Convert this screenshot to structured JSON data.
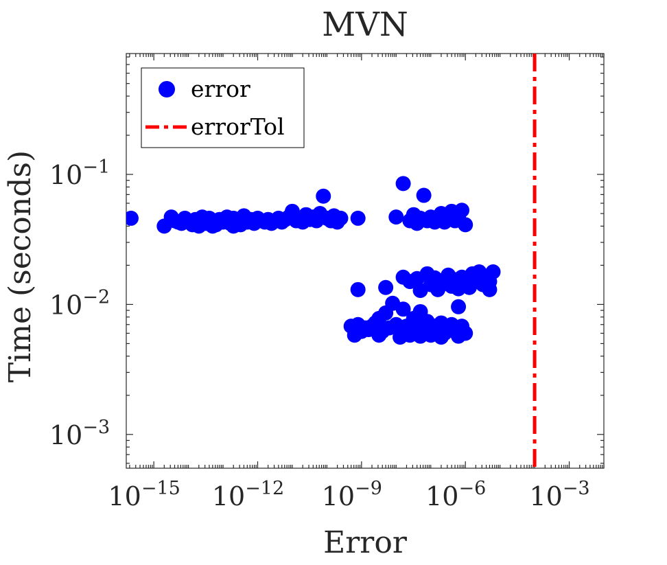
{
  "chart_data": {
    "type": "scatter",
    "title": "MVN",
    "xlabel": "Error",
    "ylabel": "Time (seconds)",
    "x_scale": "log",
    "y_scale": "log",
    "xlim": [
      1.6e-16,
      0.01
    ],
    "ylim": [
      0.00055,
      0.85
    ],
    "x_ticks": [
      {
        "base": "10",
        "exp": "−15",
        "value": 1e-15
      },
      {
        "base": "10",
        "exp": "−12",
        "value": 1e-12
      },
      {
        "base": "10",
        "exp": "−9",
        "value": 1e-09
      },
      {
        "base": "10",
        "exp": "−6",
        "value": 1e-06
      },
      {
        "base": "10",
        "exp": "−3",
        "value": 0.001
      }
    ],
    "y_ticks": [
      {
        "base": "10",
        "exp": "−3",
        "value": 0.001
      },
      {
        "base": "10",
        "exp": "−2",
        "value": 0.01
      },
      {
        "base": "10",
        "exp": "−1",
        "value": 0.1
      }
    ],
    "grid": false,
    "legend_position": "top-left",
    "series": [
      {
        "name": "error",
        "color": "#0000ff",
        "marker": "filled-circle",
        "points": [
          [
            2.2e-16,
            0.046
          ],
          [
            2e-15,
            0.04
          ],
          [
            3.2e-15,
            0.047
          ],
          [
            4e-15,
            0.044
          ],
          [
            5e-15,
            0.043
          ],
          [
            6.3e-15,
            0.042
          ],
          [
            7.9e-15,
            0.046
          ],
          [
            1e-14,
            0.044
          ],
          [
            1.3e-14,
            0.041
          ],
          [
            1.6e-14,
            0.045
          ],
          [
            2e-14,
            0.043
          ],
          [
            2.5e-14,
            0.047
          ],
          [
            3.2e-14,
            0.042
          ],
          [
            4e-14,
            0.046
          ],
          [
            5e-14,
            0.044
          ],
          [
            6.3e-14,
            0.041
          ],
          [
            7.9e-14,
            0.045
          ],
          [
            1e-13,
            0.043
          ],
          [
            1.3e-13,
            0.047
          ],
          [
            1.6e-13,
            0.042
          ],
          [
            2e-13,
            0.046
          ],
          [
            2.5e-13,
            0.044
          ],
          [
            3.2e-13,
            0.041
          ],
          [
            4e-13,
            0.048
          ],
          [
            5e-13,
            0.043
          ],
          [
            6.3e-13,
            0.045
          ],
          [
            7.9e-13,
            0.042
          ],
          [
            1e-12,
            0.046
          ],
          [
            1.3e-12,
            0.044
          ],
          [
            1.6e-12,
            0.043
          ],
          [
            2e-12,
            0.045
          ],
          [
            2.5e-12,
            0.042
          ],
          [
            3.2e-12,
            0.044
          ],
          [
            4e-12,
            0.046
          ],
          [
            5e-12,
            0.043
          ],
          [
            6.3e-12,
            0.045
          ],
          [
            7.9e-12,
            0.047
          ],
          [
            1e-11,
            0.052
          ],
          [
            1.3e-11,
            0.044
          ],
          [
            1.6e-11,
            0.046
          ],
          [
            2e-11,
            0.043
          ],
          [
            2.5e-11,
            0.049
          ],
          [
            3.2e-11,
            0.045
          ],
          [
            4e-11,
            0.047
          ],
          [
            5e-11,
            0.044
          ],
          [
            6.3e-11,
            0.05
          ],
          [
            7.9e-11,
            0.068
          ],
          [
            1e-10,
            0.046
          ],
          [
            1.3e-10,
            0.044
          ],
          [
            1.6e-10,
            0.048
          ],
          [
            2e-10,
            0.043
          ],
          [
            2.5e-10,
            0.046
          ],
          [
            2e-14,
            0.04
          ],
          [
            5e-14,
            0.04
          ],
          [
            2e-13,
            0.04
          ],
          [
            7.9e-10,
            0.046
          ],
          [
            1e-08,
            0.047
          ],
          [
            1.6e-08,
            0.085
          ],
          [
            2.5e-08,
            0.044
          ],
          [
            3.2e-08,
            0.049
          ],
          [
            4e-08,
            0.042
          ],
          [
            5e-08,
            0.046
          ],
          [
            6.3e-08,
            0.069
          ],
          [
            7.9e-08,
            0.044
          ],
          [
            1e-07,
            0.047
          ],
          [
            1.3e-07,
            0.043
          ],
          [
            1.6e-07,
            0.045
          ],
          [
            2e-07,
            0.05
          ],
          [
            2.5e-07,
            0.043
          ],
          [
            3.2e-07,
            0.046
          ],
          [
            4e-07,
            0.052
          ],
          [
            5e-07,
            0.044
          ],
          [
            6.3e-07,
            0.047
          ],
          [
            7.9e-07,
            0.053
          ],
          [
            1e-06,
            0.041
          ],
          [
            5e-10,
            0.0068
          ],
          [
            6.3e-10,
            0.0058
          ],
          [
            7.9e-10,
            0.007
          ],
          [
            1e-09,
            0.0062
          ],
          [
            1.3e-09,
            0.0066
          ],
          [
            7.9e-10,
            0.013
          ],
          [
            1.6e-09,
            0.0064
          ],
          [
            2e-09,
            0.0068
          ],
          [
            2.5e-09,
            0.0072
          ],
          [
            3.2e-09,
            0.0078
          ],
          [
            4e-09,
            0.0062
          ],
          [
            5e-09,
            0.0086
          ],
          [
            6.3e-09,
            0.0066
          ],
          [
            7.9e-09,
            0.0102
          ],
          [
            1e-08,
            0.007
          ],
          [
            1.3e-08,
            0.0062
          ],
          [
            1.6e-08,
            0.0092
          ],
          [
            2e-08,
            0.0068
          ],
          [
            2.5e-08,
            0.0058
          ],
          [
            3.2e-08,
            0.0078
          ],
          [
            4e-08,
            0.0065
          ],
          [
            5e-08,
            0.0088
          ],
          [
            6.3e-08,
            0.0062
          ],
          [
            7.9e-08,
            0.0074
          ],
          [
            1e-07,
            0.0058
          ],
          [
            1.3e-07,
            0.0068
          ],
          [
            1.6e-07,
            0.0064
          ],
          [
            2e-07,
            0.0072
          ],
          [
            2.5e-07,
            0.006
          ],
          [
            3.2e-07,
            0.0066
          ],
          [
            4e-07,
            0.007
          ],
          [
            5e-07,
            0.0062
          ],
          [
            6.3e-07,
            0.0096
          ],
          [
            7.9e-07,
            0.0068
          ],
          [
            1e-06,
            0.006
          ],
          [
            3.2e-09,
            0.0058
          ],
          [
            1.3e-08,
            0.0056
          ],
          [
            5e-08,
            0.0057
          ],
          [
            2e-07,
            0.0056
          ],
          [
            6.3e-07,
            0.0057
          ],
          [
            5e-09,
            0.0135
          ],
          [
            1.6e-08,
            0.0162
          ],
          [
            2.5e-08,
            0.015
          ],
          [
            4e-08,
            0.0158
          ],
          [
            5e-08,
            0.0128
          ],
          [
            7.9e-08,
            0.0172
          ],
          [
            1e-07,
            0.0142
          ],
          [
            1.3e-07,
            0.016
          ],
          [
            1.6e-07,
            0.013
          ],
          [
            2e-07,
            0.0152
          ],
          [
            2.5e-07,
            0.0145
          ],
          [
            3.2e-07,
            0.0168
          ],
          [
            4e-07,
            0.0138
          ],
          [
            5e-07,
            0.0155
          ],
          [
            6.3e-07,
            0.0132
          ],
          [
            7.9e-07,
            0.0162
          ],
          [
            1e-06,
            0.0148
          ],
          [
            1.3e-06,
            0.0135
          ],
          [
            1.6e-06,
            0.0172
          ],
          [
            2e-06,
            0.0152
          ],
          [
            2.5e-06,
            0.0178
          ],
          [
            3.2e-06,
            0.0142
          ],
          [
            4e-06,
            0.0165
          ],
          [
            5e-06,
            0.013
          ],
          [
            6.3e-06,
            0.0178
          ],
          [
            5e-06,
            0.015
          ]
        ]
      },
      {
        "name": "errorTol",
        "color": "#ff0000",
        "line_style": "dash-dot",
        "x_value": 0.0001
      }
    ]
  }
}
